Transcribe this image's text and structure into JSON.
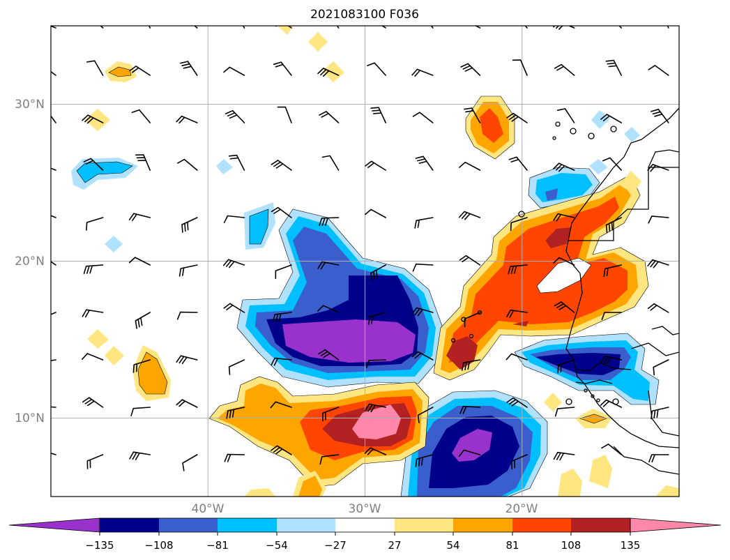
{
  "title": "2021083100 F036",
  "map": {
    "lat_labels": [
      "30°N",
      "20°N",
      "10°N"
    ],
    "lon_labels": [
      "40°W",
      "30°W",
      "20°W"
    ],
    "extent": {
      "lon_min": -50,
      "lon_max": -10,
      "lat_min": 5,
      "lat_max": 35
    },
    "grid": true
  },
  "colorbar": {
    "tick_labels": [
      "−135",
      "−108",
      "−81",
      "−54",
      "−27",
      "27",
      "54",
      "81",
      "108",
      "135"
    ],
    "levels": [
      -135,
      -108,
      -81,
      -54,
      -27,
      27,
      54,
      81,
      108,
      135
    ],
    "colors": [
      "#9932cc",
      "#00008b",
      "#3a5fcd",
      "#00bfff",
      "#b0e2ff",
      "#ffffff",
      "#ffe680",
      "#ffa500",
      "#ff4500",
      "#b22222",
      "#ff88aa"
    ],
    "extend": "both"
  }
}
